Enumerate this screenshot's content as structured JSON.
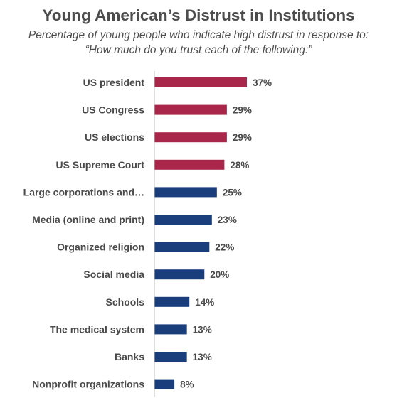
{
  "colors": {
    "government": "#a8274a",
    "other": "#1a3d7c",
    "axis": "#bfbfbf",
    "text": "#4a4a4a"
  },
  "chart_data": {
    "type": "bar",
    "orientation": "horizontal",
    "title": "Young American’s Distrust in Institutions",
    "subtitle_line1": "Percentage of young people who indicate high distrust in response to:",
    "subtitle_line2": "“How much do you trust each of the following:”",
    "categories": [
      "US president",
      "US Congress",
      "US elections",
      "US Supreme Court",
      "Large corporations and…",
      "Media (online and print)",
      "Organized religion",
      "Social media",
      "Schools",
      "The medical system",
      "Banks",
      "Nonprofit organizations"
    ],
    "values": [
      37,
      29,
      29,
      28,
      25,
      23,
      22,
      20,
      14,
      13,
      13,
      8
    ],
    "value_labels": [
      "37%",
      "29%",
      "29%",
      "28%",
      "25%",
      "23%",
      "22%",
      "20%",
      "14%",
      "13%",
      "13%",
      "8%"
    ],
    "bar_colors": [
      "government",
      "government",
      "government",
      "government",
      "other",
      "other",
      "other",
      "other",
      "other",
      "other",
      "other",
      "other"
    ],
    "xlim": [
      0,
      100
    ],
    "grid": false,
    "legend": "none"
  }
}
